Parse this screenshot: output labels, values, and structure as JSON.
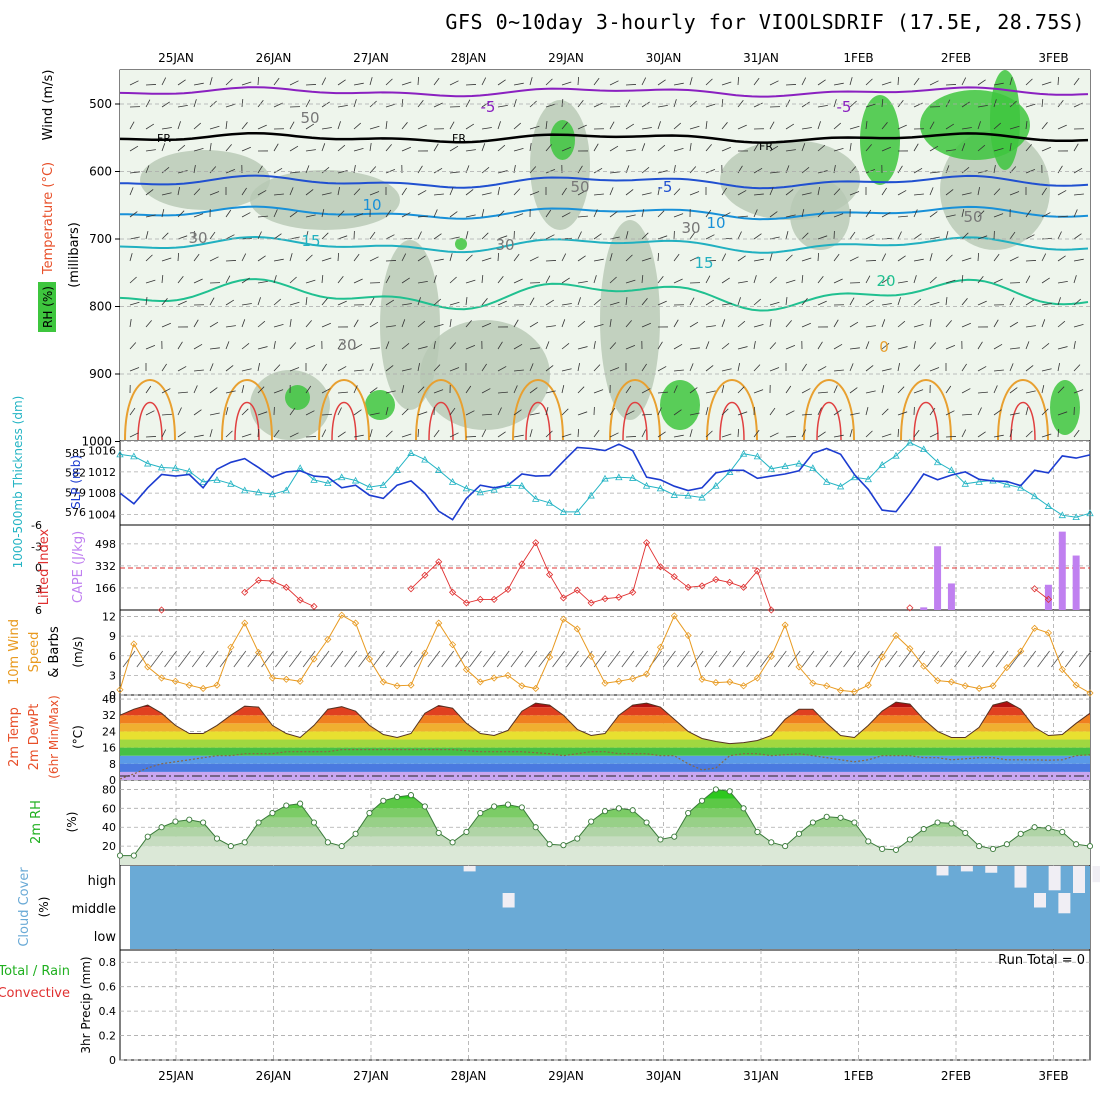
{
  "title": "GFS 0~10day 3-hourly for VIOOLSDRIF (17.5E, 28.75S)",
  "dates": [
    "25JAN",
    "26JAN",
    "27JAN",
    "28JAN",
    "29JAN",
    "30JAN",
    "31JAN",
    "1FEB",
    "2FEB",
    "3FEB"
  ],
  "colors": {
    "rh": "#3ec63e",
    "rh_light": "#dfeedb",
    "temp_label": "#e8502a",
    "wind_label": "#000000",
    "thickness": "#24b4c4",
    "slp": "#1c3cd0",
    "lifted": "#e03030",
    "cape": "#c080f0",
    "wind10": "#e89a20",
    "cloud": "#6aaad6"
  },
  "panels": {
    "upper": {
      "ylabel_rh": "RH (%)",
      "ylabel_temp": "Temperature (°C)",
      "ylabel_wind": "Wind (m/s)",
      "ylabel_mb": "(millibars)",
      "yticks": [
        "500",
        "600",
        "700",
        "800",
        "900",
        "1000"
      ],
      "contour_labels": [
        "-5",
        "-5",
        "FR",
        "FR",
        "FR",
        "-5",
        "10",
        "10",
        "15",
        "15",
        "20",
        "0",
        "50",
        "50",
        "30",
        "30",
        "30",
        "30",
        "50"
      ]
    },
    "thickness_slp": {
      "ylabel_left": "1000-500mb Thickness (dm)",
      "ylabel_right": "SLP (mb)",
      "left_ticks": [
        "585",
        "582",
        "579",
        "576"
      ],
      "right_ticks": [
        "1016",
        "1012",
        "1008",
        "1004"
      ]
    },
    "li_cape": {
      "ylabel_left": "Lifted Index",
      "ylabel_right": "CAPE (J/kg)",
      "left_ticks": [
        "-6",
        "-3",
        "0",
        "3",
        "6"
      ],
      "right_ticks": [
        "498",
        "332",
        "166"
      ]
    },
    "wind10": {
      "ylabel": "10m Wind Speed & Barbs",
      "unit": "(m/s)",
      "ticks": [
        "12",
        "9",
        "6",
        "3",
        "0"
      ]
    },
    "temp2m": {
      "ylabel": "2m Temp 2m DewPt (6hr Min/Max)",
      "unit": "(°C)",
      "ticks": [
        "40",
        "32",
        "24",
        "16",
        "8",
        "0"
      ]
    },
    "rh2m": {
      "ylabel": "2m RH",
      "unit": "(%)",
      "ticks": [
        "80",
        "60",
        "40",
        "20"
      ]
    },
    "cloud": {
      "ylabel": "Cloud Cover",
      "unit": "(%)",
      "levels": [
        "high",
        "middle",
        "low"
      ]
    },
    "precip": {
      "ylabel_total": "Total / Rain",
      "ylabel_conv": "Convective",
      "ylabel_unit": "3hr Precip (mm)",
      "ticks": [
        "0.8",
        "0.6",
        "0.4",
        "0.2",
        "0"
      ],
      "run_total": "Run Total = 0"
    }
  },
  "chart_data": [
    {
      "type": "line",
      "name": "1000-500mb Thickness",
      "unit": "dm",
      "ylim": [
        574,
        587
      ],
      "values": [
        584.8,
        584.5,
        583.4,
        582.8,
        582.7,
        582.2,
        580.6,
        580.9,
        580.3,
        579.3,
        579,
        578.7,
        579.3,
        582.7,
        580.9,
        580.4,
        581.3,
        580.8,
        579.8,
        580.1,
        582.4,
        585,
        584,
        582.4,
        580.6,
        579.6,
        579,
        579.4,
        580.1,
        580,
        578,
        577.4,
        576,
        576,
        578.5,
        581.1,
        581.3,
        581.2,
        580,
        579.6,
        578.6,
        578.5,
        578.2,
        580,
        582.1,
        584.9,
        584.5,
        582.6,
        583,
        583.4,
        582.7,
        580.6,
        579.9,
        581.3,
        581,
        583.2,
        584.6,
        586.6,
        585.6,
        583.6,
        582.4,
        580.3,
        580.6,
        580.8,
        580.2,
        579.7,
        578.4,
        576.9,
        575.5,
        575.2,
        575.8
      ]
    },
    {
      "type": "line",
      "name": "SLP",
      "unit": "mb",
      "ylim": [
        1002,
        1018
      ],
      "values": [
        1008,
        1006,
        1009,
        1011.5,
        1011.2,
        1011.5,
        1009,
        1012.5,
        1013.8,
        1014.5,
        1012.8,
        1011,
        1012,
        1012.2,
        1011.2,
        1011,
        1009,
        1009.5,
        1007.6,
        1007,
        1009.5,
        1010.3,
        1008,
        1004.6,
        1003,
        1007,
        1009.5,
        1009,
        1009.5,
        1011.6,
        1011.2,
        1011.3,
        1014,
        1016.6,
        1016.4,
        1016,
        1017.2,
        1016,
        1011,
        1010.5,
        1009.3,
        1008.5,
        1009,
        1011.8,
        1012.3,
        1012.3,
        1010.8,
        1011.2,
        1011.6,
        1012.2,
        1015.5,
        1016.4,
        1015.3,
        1011.5,
        1008.7,
        1004.8,
        1004.5,
        1007.9,
        1011.6,
        1010.5,
        1011.4,
        1012,
        1010.6,
        1010.3,
        1010.2,
        1009.4,
        1012.3,
        1011.8,
        1015,
        1014.6,
        1015.2
      ]
    },
    {
      "type": "line",
      "name": "Lifted Index",
      "ylim": [
        -6,
        6
      ],
      "values": [
        null,
        null,
        null,
        6,
        null,
        null,
        null,
        null,
        null,
        3.5,
        1.8,
        1.9,
        2.8,
        4.6,
        5.5,
        null,
        null,
        null,
        null,
        null,
        null,
        3,
        1.1,
        -0.8,
        3.5,
        5,
        4.5,
        4.5,
        3.1,
        -0.5,
        -3.5,
        1,
        4.3,
        3.2,
        5,
        4.4,
        4.2,
        3.5,
        -3.5,
        -0.1,
        1.3,
        2.8,
        2.6,
        1.7,
        2.1,
        2.8,
        0.5,
        6,
        null,
        null,
        null,
        null,
        null,
        null,
        null,
        null,
        null,
        5.7,
        null,
        null,
        null,
        null,
        null,
        null,
        null,
        null,
        3,
        4.5,
        null,
        null,
        null
      ]
    },
    {
      "type": "bar",
      "name": "CAPE",
      "unit": "J/kg",
      "ylim": [
        0,
        640
      ],
      "values": [
        0,
        0,
        0,
        0,
        0,
        0,
        0,
        0,
        0,
        0,
        0,
        0,
        0,
        0,
        0,
        0,
        0,
        0,
        0,
        0,
        0,
        0,
        0,
        0,
        0,
        0,
        0,
        0,
        0,
        0,
        0,
        0,
        0,
        0,
        0,
        0,
        0,
        0,
        0,
        0,
        0,
        0,
        0,
        0,
        0,
        0,
        0,
        0,
        0,
        0,
        0,
        0,
        0,
        0,
        0,
        0,
        0,
        0,
        20,
        480,
        200,
        0,
        0,
        0,
        0,
        0,
        0,
        190,
        590,
        410,
        0
      ]
    },
    {
      "type": "line",
      "name": "10m Wind Speed",
      "unit": "m/s",
      "ylim": [
        0,
        13
      ],
      "values": [
        0.8,
        7.8,
        4.3,
        2.6,
        2.1,
        1.5,
        1,
        1.5,
        7.3,
        11,
        6.5,
        2.6,
        2.4,
        2.1,
        5.5,
        8.5,
        12.2,
        11,
        5.5,
        2,
        1.4,
        1.5,
        6.4,
        11,
        7.7,
        3.9,
        2,
        2.6,
        3,
        1.4,
        1,
        5.8,
        11.6,
        10.1,
        5.9,
        1.8,
        2.1,
        2.5,
        3.2,
        7.3,
        12.1,
        9.1,
        2.4,
        1.9,
        2,
        1.4,
        2.6,
        5.9,
        10.7,
        4.3,
        1.8,
        1.4,
        0.7,
        0.5,
        1.5,
        5.8,
        9.1,
        7.1,
        4.4,
        2.2,
        2,
        1.4,
        1,
        1.4,
        4.2,
        6.7,
        10.2,
        9.5,
        3.9,
        1.5,
        0.3
      ]
    },
    {
      "type": "area",
      "name": "2m Temp",
      "unit": "°C",
      "ylim": [
        0,
        42
      ],
      "values": [
        32,
        35,
        37,
        33,
        27,
        23,
        23,
        27,
        32,
        36.5,
        36,
        27,
        23,
        21,
        27,
        35,
        36.2,
        34,
        27,
        22.5,
        21,
        23,
        33,
        36.8,
        35.5,
        28,
        23,
        22,
        24.5,
        34,
        38,
        37,
        32,
        25,
        22,
        23,
        32,
        37,
        38,
        36,
        30,
        24,
        20.5,
        19,
        18,
        18.5,
        19.5,
        22,
        30,
        35,
        35,
        28,
        22,
        21,
        27,
        34,
        38.5,
        37.5,
        30,
        24,
        21,
        21,
        26,
        37,
        38.8,
        35,
        26,
        22,
        22.5,
        28,
        33
      ]
    },
    {
      "type": "line",
      "name": "2m DewPt",
      "unit": "°C",
      "ylim": [
        0,
        42
      ],
      "values": [
        0.5,
        3,
        6,
        8,
        9,
        10,
        11,
        12,
        12,
        13,
        13,
        13,
        14,
        14,
        14,
        14,
        15,
        15,
        15,
        15,
        15,
        15,
        15,
        15,
        15,
        14.5,
        14,
        14,
        14,
        14,
        13.5,
        13,
        12,
        13,
        14,
        14,
        13,
        13,
        13,
        12,
        12,
        8,
        5,
        6,
        12,
        13,
        13,
        12,
        12.5,
        13,
        12,
        11,
        10,
        9,
        10,
        12,
        12,
        12,
        11,
        11,
        10,
        10.5,
        11,
        11,
        10,
        10,
        10,
        9.8,
        10,
        12,
        12.5
      ]
    },
    {
      "type": "area",
      "name": "2m RH",
      "unit": "%",
      "ylim": [
        0,
        90
      ],
      "values": [
        10,
        10,
        30,
        40,
        46,
        48,
        45,
        28,
        20,
        24,
        45,
        55,
        63,
        65,
        45,
        24,
        20,
        33,
        55,
        68,
        72,
        74,
        62,
        34,
        24,
        35,
        55,
        62,
        64,
        61,
        40,
        22,
        21,
        28,
        46,
        57,
        60,
        58,
        45,
        27,
        30,
        55,
        68,
        80,
        78,
        60,
        35,
        24,
        20,
        33,
        45,
        51,
        50,
        45,
        25,
        17,
        16,
        27,
        38,
        45,
        44,
        34,
        20,
        17,
        22,
        33,
        40,
        39,
        35,
        22,
        20
      ]
    },
    {
      "type": "heatmap",
      "name": "Cloud Cover",
      "levels": [
        "high",
        "middle",
        "low"
      ],
      "high_partial": [
        {
          "day": 3.45,
          "frac": 0.2
        },
        {
          "day": 8.3,
          "frac": 0.35
        },
        {
          "day": 8.55,
          "frac": 0.2
        },
        {
          "day": 8.8,
          "frac": 0.25
        },
        {
          "day": 9.1,
          "frac": 0.8
        },
        {
          "day": 9.45,
          "frac": 0.9
        },
        {
          "day": 9.7,
          "frac": 1
        },
        {
          "day": 9.9,
          "frac": 0.6
        },
        {
          "day": 10.2,
          "frac": 1
        }
      ],
      "middle_partial": [
        {
          "day": 3.85,
          "frac": 0.5
        },
        {
          "day": 9.3,
          "frac": 0.5
        },
        {
          "day": 9.55,
          "frac": 0.7
        }
      ],
      "low_partial": []
    },
    {
      "type": "bar",
      "name": "3hr Precip",
      "unit": "mm",
      "ylim": [
        0,
        0.9
      ],
      "values": [],
      "annotation": "Run Total = 0"
    }
  ]
}
